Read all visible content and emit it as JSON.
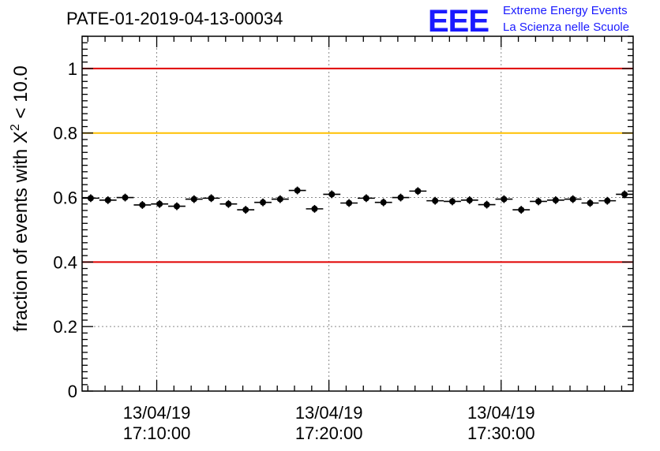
{
  "chart_data": {
    "type": "scatter",
    "title": "PATE-01-2019-04-13-00034",
    "logo": {
      "letters": "EEE",
      "line1": "Extreme Energy Events",
      "line2": "La Scienza nelle Scuole"
    },
    "ylabel_prefix": "fraction of events with ",
    "ylabel_symbol": "X",
    "ylabel_exponent": "2",
    "ylabel_suffix": " < 10.0",
    "ylim": [
      0,
      1.1
    ],
    "yticks": [
      {
        "value": 0,
        "label": "0"
      },
      {
        "value": 0.2,
        "label": "0.2"
      },
      {
        "value": 0.4,
        "label": "0.4"
      },
      {
        "value": 0.6,
        "label": "0.6"
      },
      {
        "value": 0.8,
        "label": "0.8"
      },
      {
        "value": 1,
        "label": "1"
      }
    ],
    "xlim": [
      "2019-04-13 17:05:40",
      "2019-04-13 17:37:40"
    ],
    "xticks": [
      {
        "time": "2019-04-13 17:10:00",
        "date": "13/04/19",
        "clock": "17:10:00"
      },
      {
        "time": "2019-04-13 17:20:00",
        "date": "13/04/19",
        "clock": "17:20:00"
      },
      {
        "time": "2019-04-13 17:30:00",
        "date": "13/04/19",
        "clock": "17:30:00"
      }
    ],
    "grid": true,
    "reference_lines": [
      {
        "y": 1.0,
        "color": "#e00000"
      },
      {
        "y": 0.8,
        "color": "#ffc000"
      },
      {
        "y": 0.4,
        "color": "#e00000"
      }
    ],
    "bin_width_seconds": 60,
    "series": [
      {
        "color": "#000000",
        "x": [
          "2019-04-13 17:06:10",
          "2019-04-13 17:07:10",
          "2019-04-13 17:08:10",
          "2019-04-13 17:09:10",
          "2019-04-13 17:10:10",
          "2019-04-13 17:11:10",
          "2019-04-13 17:12:10",
          "2019-04-13 17:13:10",
          "2019-04-13 17:14:10",
          "2019-04-13 17:15:10",
          "2019-04-13 17:16:10",
          "2019-04-13 17:17:10",
          "2019-04-13 17:18:10",
          "2019-04-13 17:19:10",
          "2019-04-13 17:20:10",
          "2019-04-13 17:21:10",
          "2019-04-13 17:22:10",
          "2019-04-13 17:23:10",
          "2019-04-13 17:24:10",
          "2019-04-13 17:25:10",
          "2019-04-13 17:26:10",
          "2019-04-13 17:27:10",
          "2019-04-13 17:28:10",
          "2019-04-13 17:29:10",
          "2019-04-13 17:30:10",
          "2019-04-13 17:31:10",
          "2019-04-13 17:32:10",
          "2019-04-13 17:33:10",
          "2019-04-13 17:34:10",
          "2019-04-13 17:35:10",
          "2019-04-13 17:36:10",
          "2019-04-13 17:37:10"
        ],
        "y": [
          0.598,
          0.592,
          0.6,
          0.577,
          0.58,
          0.573,
          0.595,
          0.598,
          0.58,
          0.562,
          0.585,
          0.595,
          0.622,
          0.565,
          0.61,
          0.583,
          0.598,
          0.585,
          0.6,
          0.62,
          0.59,
          0.588,
          0.592,
          0.578,
          0.595,
          0.562,
          0.588,
          0.592,
          0.595,
          0.583,
          0.59,
          0.61
        ],
        "yerr": [
          0.012,
          0.012,
          0.012,
          0.012,
          0.012,
          0.012,
          0.012,
          0.012,
          0.012,
          0.012,
          0.012,
          0.012,
          0.012,
          0.012,
          0.012,
          0.012,
          0.012,
          0.012,
          0.012,
          0.012,
          0.012,
          0.012,
          0.012,
          0.012,
          0.012,
          0.012,
          0.012,
          0.012,
          0.012,
          0.012,
          0.012,
          0.012
        ]
      }
    ]
  }
}
